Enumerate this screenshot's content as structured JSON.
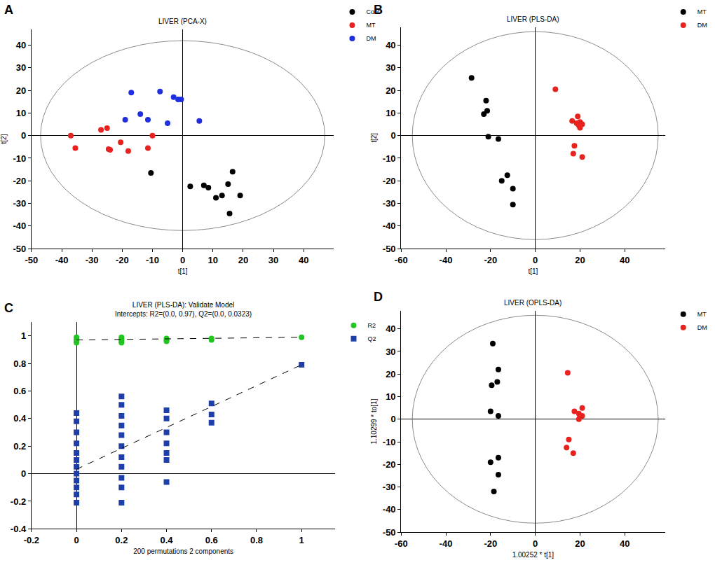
{
  "chart_data": [
    {
      "type": "scatter",
      "title": "LIVER (PCA-X)",
      "annotations": [
        "A"
      ],
      "x_label": "t[1]",
      "y_label": "t[2]",
      "xlim": [
        -50,
        50
      ],
      "ylim": [
        -50,
        47
      ],
      "xticks": [
        -50,
        -40,
        -30,
        -20,
        -10,
        0,
        10,
        20,
        30,
        40
      ],
      "yticks": [
        -50,
        -40,
        -30,
        -20,
        -10,
        0,
        10,
        20,
        30,
        40
      ],
      "grid": false,
      "legend": "top right",
      "ellipse": {
        "x_radius": 47,
        "y_radius": 42
      },
      "series": [
        {
          "name": "Cont",
          "color": "#000000",
          "marker": "circle",
          "x": [
            -10.5,
            2.5,
            7,
            8.5,
            11,
            13,
            15,
            16.5,
            15.5,
            19
          ],
          "y": [
            -16.5,
            -22.5,
            -22,
            -23,
            -27.5,
            -26.5,
            -21.5,
            -16,
            -34.5,
            -26.5
          ]
        },
        {
          "name": "MT",
          "color": "#e8231f",
          "marker": "circle",
          "x": [
            -37,
            -35.5,
            -27,
            -25,
            -24.5,
            -24,
            -20.5,
            -18,
            -11.5,
            -10
          ],
          "y": [
            0,
            -5.5,
            2.5,
            3.3,
            -6,
            -6.3,
            -3,
            -6.8,
            -5.5,
            0
          ]
        },
        {
          "name": "DM",
          "color": "#1f2fe0",
          "marker": "circle",
          "x": [
            -17,
            -19,
            -14,
            -11.5,
            -7.5,
            -5,
            -3,
            -1.5,
            -0.5,
            5.5
          ],
          "y": [
            19,
            7,
            9.5,
            7,
            19.5,
            5.5,
            17,
            16,
            16,
            6.5
          ]
        }
      ]
    },
    {
      "type": "scatter",
      "title": "LIVER (PLS-DA)",
      "annotations": [
        "B"
      ],
      "x_label": "t[1]",
      "y_label": "t[2]",
      "xlim": [
        -60,
        58
      ],
      "ylim": [
        -50,
        48
      ],
      "xticks": [
        -60,
        -40,
        -20,
        0,
        20,
        40
      ],
      "yticks": [
        -50,
        -40,
        -30,
        -20,
        -10,
        0,
        10,
        20,
        30,
        40
      ],
      "grid": false,
      "legend": "top right",
      "ellipse": {
        "x_radius": 55,
        "y_radius": 46
      },
      "series": [
        {
          "name": "MT",
          "color": "#000000",
          "marker": "circle",
          "x": [
            -28.5,
            -22,
            -21.5,
            -23,
            -21,
            -16.5,
            -12.5,
            -15,
            -10,
            -10
          ],
          "y": [
            25.5,
            15.5,
            11,
            9.5,
            -0.5,
            -1.5,
            -17.5,
            -20,
            -23.5,
            -30.5
          ]
        },
        {
          "name": "DM",
          "color": "#e8231f",
          "marker": "circle",
          "x": [
            9,
            19,
            16.5,
            18.5,
            20,
            19.5,
            21,
            20,
            17.5,
            17,
            21
          ],
          "y": [
            20.5,
            8.5,
            6.5,
            5.5,
            6,
            4.5,
            5,
            3.5,
            -4.5,
            -8,
            -9.5
          ]
        }
      ]
    },
    {
      "type": "scatter",
      "title": "LIVER (PLS-DA): Validate Model",
      "subtitle": "Intercepts: R2=(0.0, 0.97), Q2=(0.0, 0.0323)",
      "annotations": [
        "C"
      ],
      "x_label": "200 permutations 2 components",
      "y_label": "",
      "xlim": [
        -0.2,
        1.15
      ],
      "ylim": [
        -0.4,
        1.1
      ],
      "xticks": [
        -0.2,
        0,
        0.2,
        0.4,
        0.6,
        0.8,
        1
      ],
      "yticks": [
        -0.4,
        -0.2,
        0,
        0.2,
        0.4,
        0.6,
        0.8,
        1
      ],
      "grid": false,
      "legend": "top right",
      "series": [
        {
          "name": "R2",
          "color": "#22c422",
          "marker": "circle",
          "x": [
            0,
            0,
            0,
            0,
            0,
            0.2,
            0.2,
            0.2,
            0.2,
            0.2,
            0.4,
            0.4,
            0.4,
            0.6,
            0.6,
            1
          ],
          "y": [
            0.99,
            0.98,
            0.97,
            0.96,
            0.95,
            0.99,
            0.98,
            0.97,
            0.96,
            0.95,
            0.98,
            0.97,
            0.96,
            0.98,
            0.97,
            0.99
          ]
        },
        {
          "name": "Q2",
          "color": "#1f3fa8",
          "marker": "square",
          "x": [
            0,
            0,
            0,
            0,
            0,
            0,
            0,
            0,
            0,
            0,
            0,
            0,
            0.2,
            0.2,
            0.2,
            0.2,
            0.2,
            0.2,
            0.2,
            0.2,
            0.2,
            0.2,
            0.2,
            0.4,
            0.4,
            0.4,
            0.4,
            0.4,
            0.4,
            0.4,
            0.6,
            0.6,
            0.6,
            1
          ],
          "y": [
            0.44,
            0.38,
            0.3,
            0.22,
            0.15,
            0.1,
            0.05,
            0,
            -0.05,
            -0.1,
            -0.15,
            -0.21,
            0.56,
            0.5,
            0.42,
            0.35,
            0.28,
            0.2,
            0.12,
            0.05,
            -0.03,
            -0.1,
            -0.21,
            0.46,
            0.4,
            0.3,
            0.22,
            0.15,
            0.1,
            -0.06,
            0.51,
            0.43,
            0.37,
            0.79
          ]
        },
        {
          "type": "line",
          "line_style": "dash",
          "color": "#000000",
          "x": [
            0,
            1
          ],
          "y": [
            0.97,
            0.99
          ]
        },
        {
          "type": "line",
          "line_style": "dash",
          "color": "#000000",
          "x": [
            0,
            1
          ],
          "y": [
            0.0323,
            0.79
          ]
        }
      ]
    },
    {
      "type": "scatter",
      "title": "LIVER (OPLS-DA)",
      "annotations": [
        "D"
      ],
      "x_label": "1.00252 * t[1]",
      "y_label": "1.10299 * to[1]",
      "xlim": [
        -60,
        58
      ],
      "ylim": [
        -50,
        48
      ],
      "xticks": [
        -60,
        -40,
        -20,
        0,
        20,
        40
      ],
      "yticks": [
        -50,
        -40,
        -30,
        -20,
        -10,
        0,
        10,
        20,
        30,
        40
      ],
      "grid": false,
      "legend": "top right",
      "ellipse": {
        "x_radius": 55,
        "y_radius": 46
      },
      "series": [
        {
          "name": "MT",
          "color": "#000000",
          "marker": "circle",
          "x": [
            -19,
            -16.5,
            -17,
            -19.5,
            -20,
            -16.5,
            -20,
            -16.5,
            -16.5,
            -18.5
          ],
          "y": [
            33.5,
            22,
            16.5,
            15,
            3.5,
            1.5,
            -19,
            -17,
            -24.5,
            -32
          ]
        },
        {
          "name": "DM",
          "color": "#e8231f",
          "marker": "circle",
          "x": [
            14.5,
            17.5,
            21,
            19.5,
            20,
            21,
            19.5,
            15,
            14,
            17
          ],
          "y": [
            20.5,
            3.5,
            5,
            2.5,
            1,
            1.5,
            0,
            -9,
            -12.5,
            -15
          ]
        }
      ]
    }
  ]
}
